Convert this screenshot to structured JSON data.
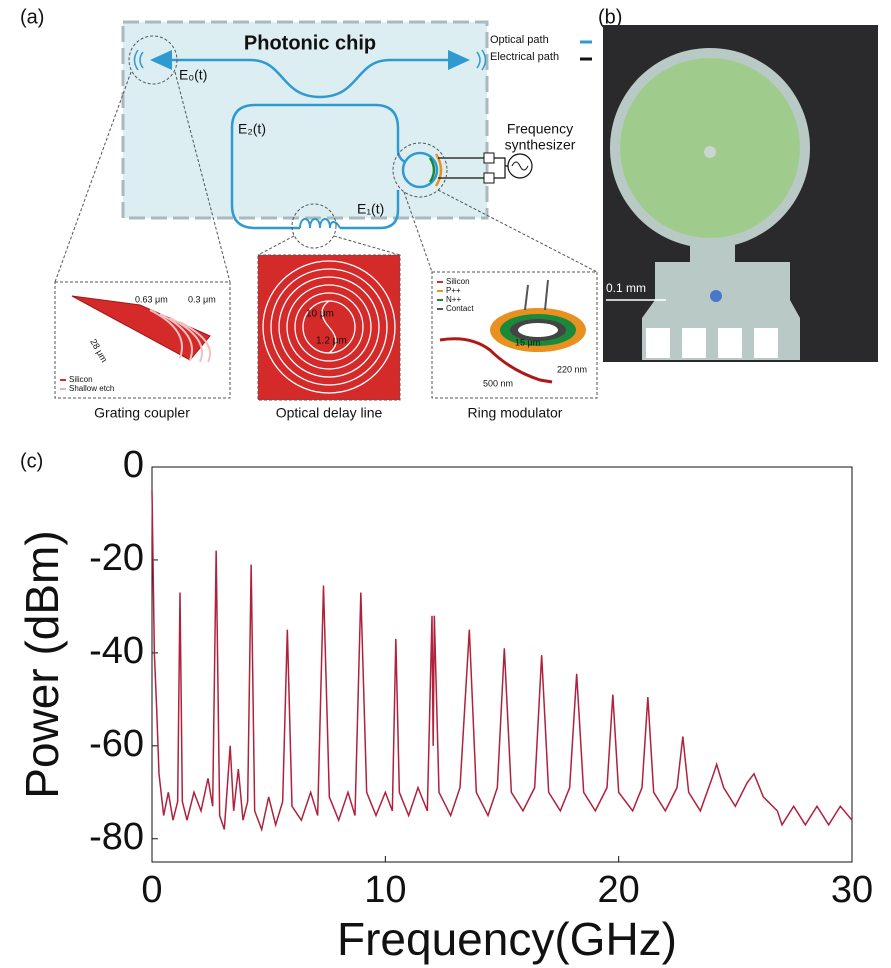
{
  "panel_a": {
    "label": "(a)",
    "chip_title": "Photonic chip",
    "legend": {
      "optical": "Optical path",
      "electrical": "Electrical path"
    },
    "fields": {
      "e0": "E₀(t)",
      "e1": "E₁(t)",
      "e2": "E₂(t)"
    },
    "synthesizer": [
      "Frequency",
      "synthesizer"
    ],
    "insets": {
      "grating": {
        "caption": "Grating coupler",
        "dims": [
          "0.63 μm",
          "0.3 μm",
          "28 μm"
        ],
        "legend": [
          "Silicon",
          "Shallow etch"
        ]
      },
      "delay": {
        "caption": "Optical delay line",
        "dims": [
          "10 μm",
          "1.2 μm"
        ]
      },
      "ring": {
        "caption": "Ring modulator",
        "dims": [
          "15 μm",
          "500 nm",
          "220 nm"
        ],
        "legend": [
          "Silicon",
          "P++",
          "N++",
          "Contact"
        ]
      }
    }
  },
  "panel_b": {
    "label": "(b)",
    "scale_bar": "0.1 mm"
  },
  "panel_c": {
    "label": "(c)"
  },
  "chart_data": {
    "type": "line",
    "x_label": "Frequency(GHz)",
    "y_label": "Power (dBm)",
    "xlim": [
      0,
      30
    ],
    "ylim": [
      -85,
      0
    ],
    "xticks": [
      0,
      10,
      20,
      30
    ],
    "yticks": [
      0,
      -20,
      -40,
      -60,
      -80
    ],
    "series": [
      {
        "name": "Power",
        "color": "#b0213c",
        "x": [
          0,
          0.1,
          0.2,
          0.3,
          0.5,
          0.7,
          0.9,
          1.1,
          1.2,
          1.3,
          1.5,
          1.8,
          2.1,
          2.4,
          2.6,
          2.75,
          2.9,
          3.1,
          3.35,
          3.5,
          3.7,
          3.9,
          4.1,
          4.25,
          4.4,
          4.7,
          5.0,
          5.3,
          5.6,
          5.8,
          6.0,
          6.4,
          6.8,
          7.1,
          7.35,
          7.6,
          8.0,
          8.4,
          8.7,
          8.95,
          9.2,
          9.6,
          10.0,
          10.3,
          10.45,
          10.6,
          11.0,
          11.4,
          11.8,
          12.0,
          12.05,
          12.1,
          12.3,
          12.8,
          13.2,
          13.6,
          13.9,
          14.4,
          14.8,
          15.1,
          15.4,
          15.9,
          16.4,
          16.7,
          17.0,
          17.5,
          17.9,
          18.2,
          18.5,
          19.0,
          19.5,
          19.75,
          20.0,
          20.6,
          21.0,
          21.25,
          21.5,
          22.0,
          22.5,
          22.75,
          23.0,
          23.5,
          24.0,
          24.2,
          24.5,
          25.0,
          25.5,
          25.8,
          26.2,
          26.8,
          27.0,
          27.5,
          28.0,
          28.5,
          29.0,
          29.5,
          30
        ],
        "values": [
          -5,
          -40,
          -52,
          -66,
          -75,
          -70,
          -76,
          -72,
          -27,
          -72,
          -76,
          -70,
          -74,
          -67,
          -73,
          -18,
          -75,
          -78,
          -60,
          -74,
          -65,
          -76,
          -72,
          -21,
          -74,
          -78,
          -71,
          -77,
          -72,
          -35,
          -73,
          -76,
          -70,
          -75,
          -25.5,
          -71,
          -76,
          -70,
          -75,
          -27,
          -70,
          -75,
          -70,
          -74,
          -37,
          -70,
          -75,
          -69,
          -74,
          -32,
          -60,
          -32,
          -70,
          -75,
          -69,
          -35,
          -70,
          -75,
          -69,
          -39,
          -70,
          -74,
          -69,
          -40.5,
          -70,
          -74,
          -69,
          -44.5,
          -70,
          -74,
          -69,
          -49,
          -70,
          -74,
          -69,
          -49.5,
          -70,
          -74,
          -69,
          -58,
          -70,
          -74,
          -67,
          -64,
          -69,
          -73,
          -68,
          -66,
          -71,
          -74,
          -77,
          -73,
          -77,
          -73,
          -77,
          -73,
          -76
        ]
      }
    ]
  }
}
